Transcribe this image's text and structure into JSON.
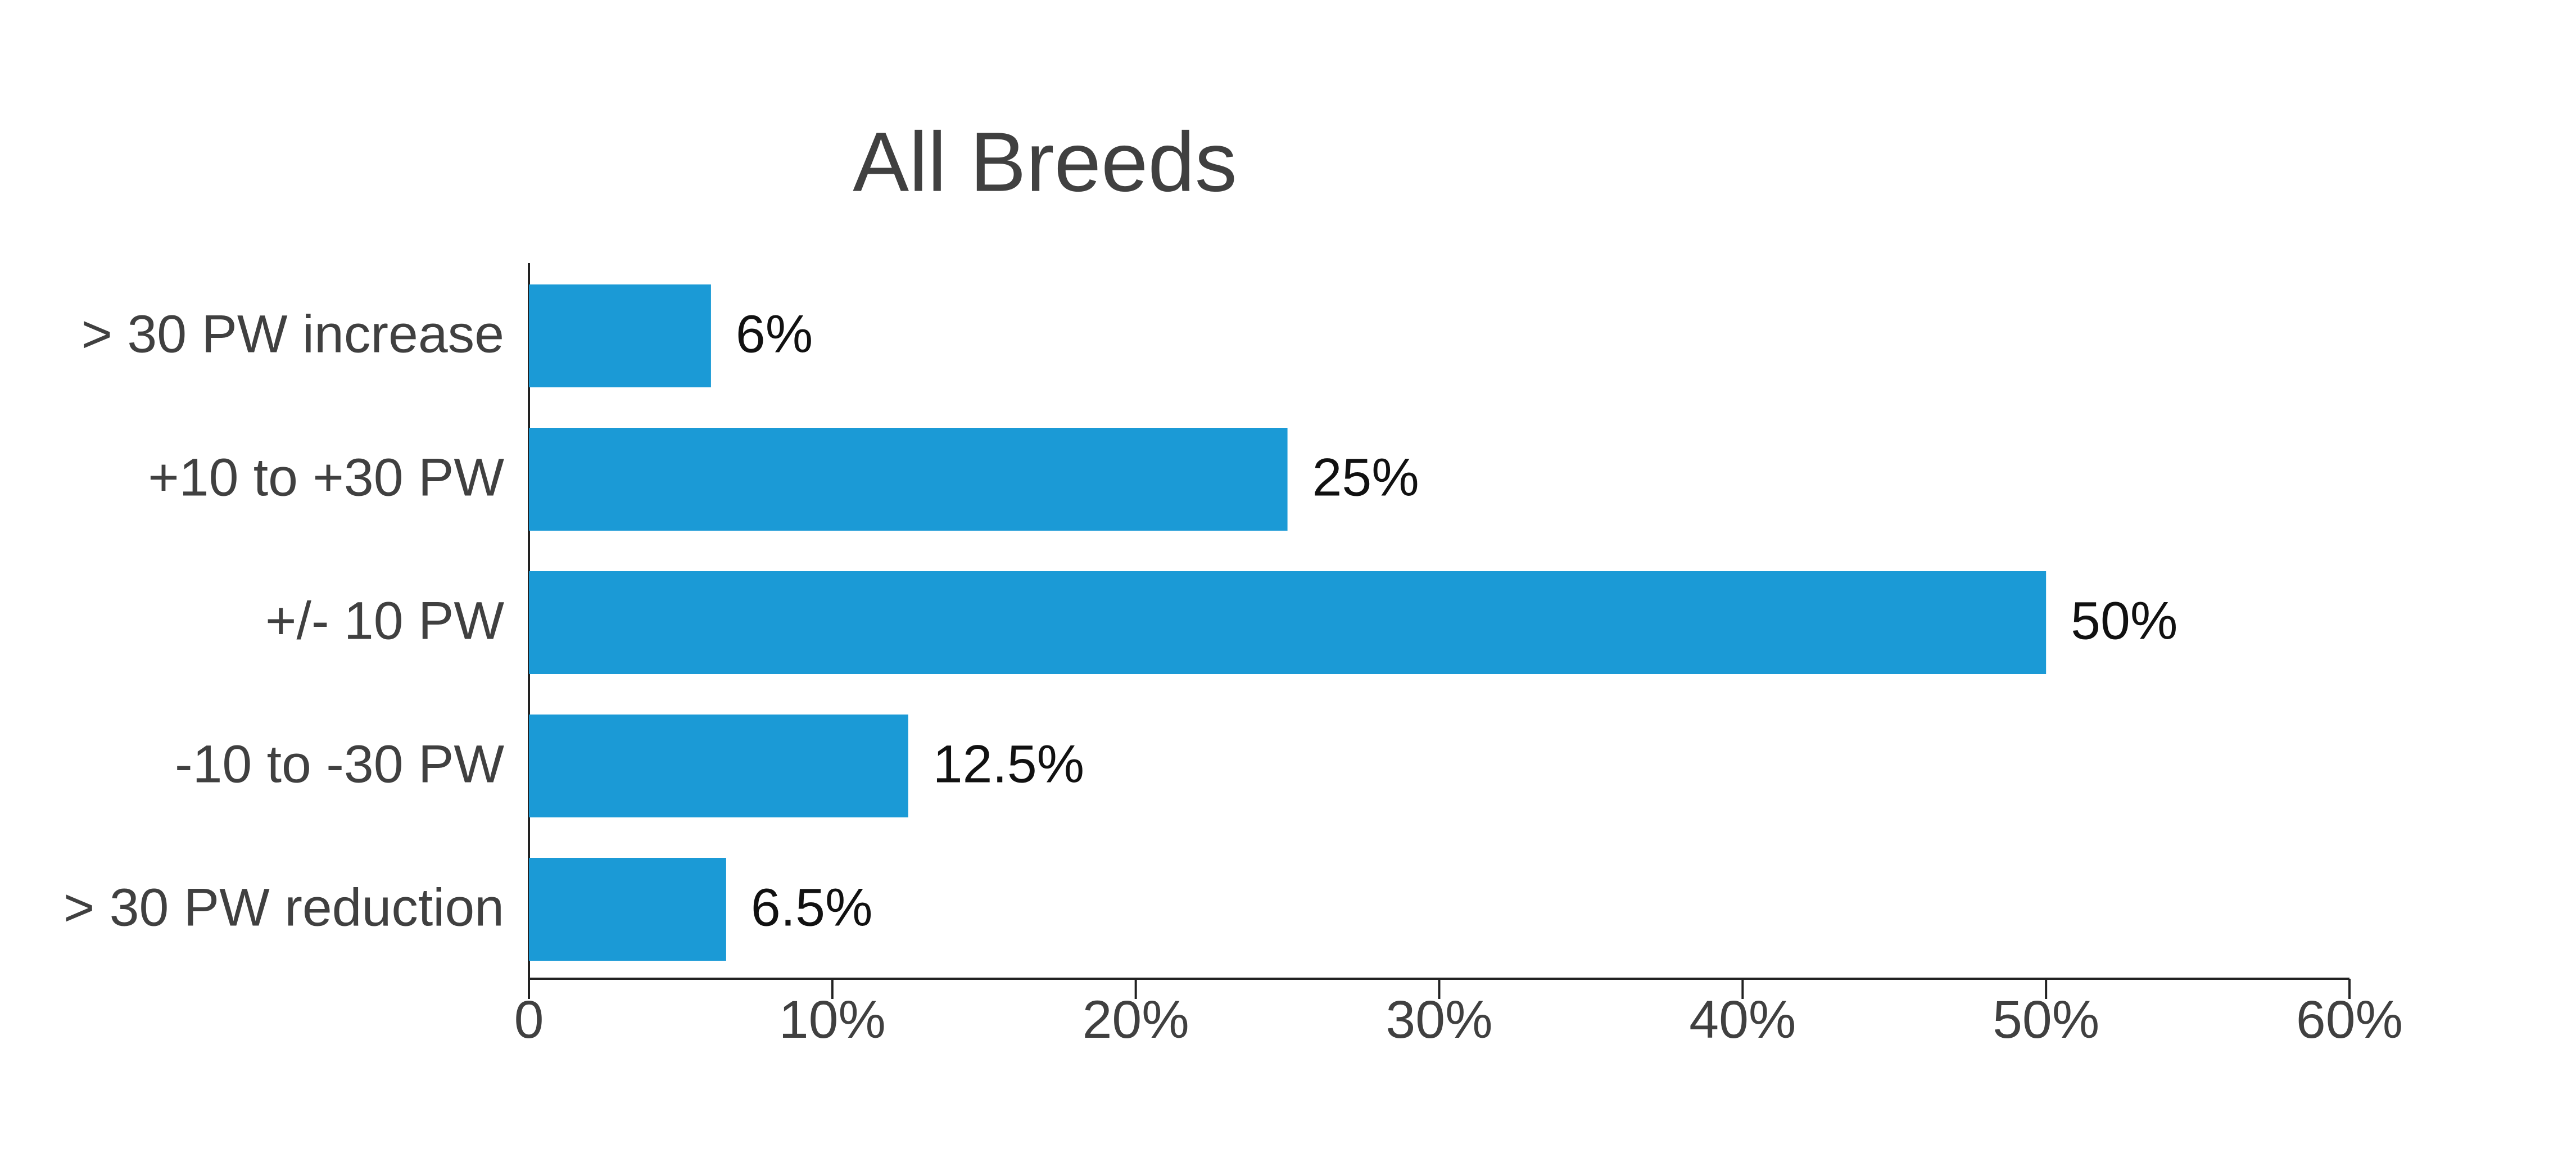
{
  "chart_data": {
    "type": "barh",
    "title": "All Breeds",
    "categories": [
      "> 30 PW increase",
      "+10 to +30 PW",
      "+/- 10 PW",
      "-10 to -30 PW",
      "> 30 PW reduction"
    ],
    "values": [
      6,
      25,
      50,
      12.5,
      6.5
    ],
    "value_labels": [
      "6%",
      "25%",
      "50%",
      "12.5%",
      "6.5%"
    ],
    "color": "#1b9ad6",
    "xlim": [
      0,
      60
    ],
    "xticks": [
      0,
      {
        "value": 10,
        "label": "10%"
      },
      {
        "value": 20,
        "label": "20%"
      },
      {
        "value": 30,
        "label": "30%"
      },
      {
        "value": 40,
        "label": "40%"
      },
      {
        "value": 50,
        "label": "50%"
      },
      {
        "value": 60,
        "label": "60%"
      }
    ]
  }
}
